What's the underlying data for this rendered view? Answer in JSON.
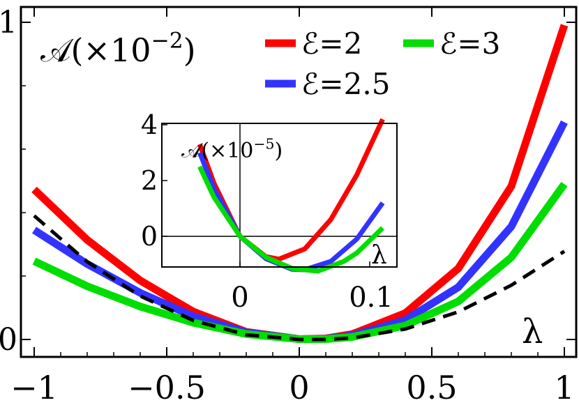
{
  "chart_data": [
    {
      "type": "line",
      "title": "",
      "ylabel": "𝒜(×10⁻²)",
      "ylabel_parts": {
        "base": "𝒜(×10",
        "exp": "−2",
        "close": ")"
      },
      "xlabel": "λ",
      "xlim": [
        -1.02,
        1.02
      ],
      "ylim": [
        0,
        1
      ],
      "x_ticks": [
        -1,
        -0.5,
        0,
        0.5,
        1
      ],
      "x_tick_labels": [
        "−1",
        "−0.5",
        "0",
        "0.5",
        "1"
      ],
      "y_ticks": [
        0,
        1
      ],
      "y_tick_labels": [
        "0",
        "1"
      ],
      "legend_position": "top-right",
      "series": [
        {
          "name": "ℰ=2",
          "color": "#ff0000",
          "dashed": false,
          "x": [
            -1,
            -0.8,
            -0.6,
            -0.4,
            -0.2,
            0,
            0.1,
            0.2,
            0.4,
            0.6,
            0.8,
            1
          ],
          "y": [
            0.473,
            0.314,
            0.186,
            0.088,
            0.024,
            0.001,
            0.003,
            0.017,
            0.083,
            0.224,
            0.483,
            0.991
          ]
        },
        {
          "name": "ℰ=2.5",
          "color": "#3333ff",
          "dashed": false,
          "x": [
            -1,
            -0.8,
            -0.6,
            -0.4,
            -0.2,
            0,
            0.1,
            0.2,
            0.4,
            0.6,
            0.8,
            1
          ],
          "y": [
            0.345,
            0.238,
            0.147,
            0.073,
            0.022,
            0.001,
            0.002,
            0.012,
            0.061,
            0.165,
            0.356,
            0.685
          ]
        },
        {
          "name": "ℰ=3",
          "color": "#00dd00",
          "dashed": false,
          "x": [
            -1,
            -0.8,
            -0.6,
            -0.4,
            -0.2,
            0,
            0.1,
            0.2,
            0.4,
            0.6,
            0.8,
            1
          ],
          "y": [
            0.247,
            0.168,
            0.104,
            0.053,
            0.017,
            0.001,
            0.001,
            0.008,
            0.044,
            0.12,
            0.259,
            0.49
          ]
        },
        {
          "name": "",
          "color": "#000000",
          "dashed": true,
          "x": [
            -1,
            -0.8,
            -0.6,
            -0.4,
            -0.2,
            0,
            0.1,
            0.2,
            0.4,
            0.6,
            0.8,
            1
          ],
          "y": [
            0.39,
            0.245,
            0.137,
            0.06,
            0.015,
            0.0,
            0.0,
            0.005,
            0.033,
            0.087,
            0.171,
            0.278
          ]
        }
      ]
    },
    {
      "type": "line",
      "title": "",
      "ylabel": "𝒜(×10⁻⁵)",
      "ylabel_parts": {
        "base": "𝒜(×10",
        "exp": "−5",
        "close": ")"
      },
      "xlabel": "λ",
      "xlim": [
        -0.035,
        0.115
      ],
      "ylim": [
        -1.4,
        4.2
      ],
      "x_ticks": [
        0,
        0.1
      ],
      "x_tick_labels": [
        "0",
        "0.1"
      ],
      "y_ticks": [
        0,
        2,
        4
      ],
      "y_tick_labels": [
        "0",
        "2",
        "4"
      ],
      "series": [
        {
          "name": "ℰ=2",
          "color": "#ff0000",
          "x": [
            -0.031,
            -0.02,
            0,
            0.02,
            0.03,
            0.05,
            0.07,
            0.09,
            0.11
          ],
          "y": [
            3.3,
            1.9,
            0.0,
            -0.73,
            -0.82,
            -0.45,
            0.6,
            2.2,
            4.2
          ]
        },
        {
          "name": "ℰ=2.5",
          "color": "#3333ff",
          "x": [
            -0.031,
            -0.02,
            0,
            0.02,
            0.04,
            0.05,
            0.07,
            0.09,
            0.11
          ],
          "y": [
            3.0,
            1.7,
            0.0,
            -0.8,
            -1.18,
            -1.2,
            -0.9,
            -0.1,
            1.2
          ]
        },
        {
          "name": "ℰ=3",
          "color": "#00dd00",
          "x": [
            -0.031,
            -0.02,
            0,
            0.02,
            0.04,
            0.06,
            0.08,
            0.09,
            0.11
          ],
          "y": [
            2.5,
            1.4,
            0.0,
            -0.75,
            -1.15,
            -1.25,
            -0.9,
            -0.6,
            0.3
          ]
        }
      ]
    }
  ]
}
